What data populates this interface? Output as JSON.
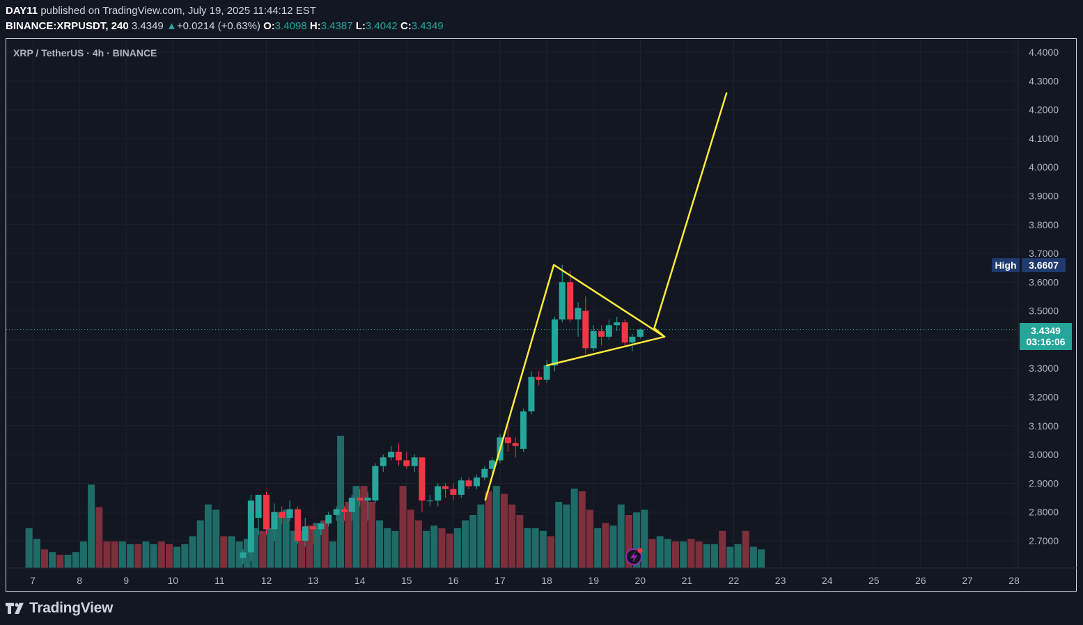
{
  "header": {
    "author": "DAY11",
    "published_text": "published on TradingView.com, July 19, 2025 11:44:12 EST",
    "symbol": "BINANCE:XRPUSDT, 240",
    "last": "3.4349",
    "change": "+0.0214 (+0.63%)",
    "open_label": "O:",
    "open": "3.4098",
    "high_label": "H:",
    "high": "3.4387",
    "low_label": "L:",
    "low": "3.4042",
    "close_label": "C:",
    "close": "3.4349"
  },
  "legend": "XRP / TetherUS · 4h · BINANCE",
  "high_marker": {
    "label": "High",
    "value": "3.6607"
  },
  "price_marker": {
    "value": "3.4349",
    "countdown": "03:16:06"
  },
  "brand": "TradingView",
  "colors": {
    "up": "#26a69a",
    "down": "#f23645",
    "up_vol": "#1f6b68",
    "down_vol": "#7d2f3b",
    "drawing": "#ffeb3b",
    "background": "#131722"
  },
  "chart_data": {
    "type": "candlestick",
    "title": "XRP / TetherUS · 4h · BINANCE",
    "y_ticks": [
      "4.4000",
      "4.3000",
      "4.2000",
      "4.1000",
      "4.0000",
      "3.9000",
      "3.8000",
      "3.7000",
      "3.6000",
      "3.5000",
      "3.4000",
      "3.3000",
      "3.2000",
      "3.1000",
      "3.0000",
      "2.9000",
      "2.8000",
      "2.7000"
    ],
    "ylim": [
      2.62,
      4.43
    ],
    "x_ticks": [
      {
        "label": "7",
        "day": 7
      },
      {
        "label": "8",
        "day": 8
      },
      {
        "label": "9",
        "day": 9
      },
      {
        "label": "10",
        "day": 10
      },
      {
        "label": "11",
        "day": 11
      },
      {
        "label": "12",
        "day": 12
      },
      {
        "label": "13",
        "day": 13
      },
      {
        "label": "14",
        "day": 14
      },
      {
        "label": "15",
        "day": 15
      },
      {
        "label": "16",
        "day": 16
      },
      {
        "label": "17",
        "day": 17
      },
      {
        "label": "18",
        "day": 18
      },
      {
        "label": "19",
        "day": 19
      },
      {
        "label": "20",
        "day": 20
      },
      {
        "label": "21",
        "day": 21
      },
      {
        "label": "22",
        "day": 22
      },
      {
        "label": "23",
        "day": 23
      },
      {
        "label": "24",
        "day": 24
      },
      {
        "label": "25",
        "day": 25
      },
      {
        "label": "26",
        "day": 26
      },
      {
        "label": "27",
        "day": 27
      },
      {
        "label": "28",
        "day": 28
      }
    ],
    "candles": [
      {
        "day": 11.5,
        "o": 2.64,
        "h": 2.67,
        "l": 2.62,
        "c": 2.66
      },
      {
        "day": 11.67,
        "o": 2.66,
        "h": 2.86,
        "l": 2.63,
        "c": 2.84
      },
      {
        "day": 11.83,
        "o": 2.78,
        "h": 2.86,
        "l": 2.72,
        "c": 2.86
      },
      {
        "day": 12.0,
        "o": 2.86,
        "h": 2.87,
        "l": 2.72,
        "c": 2.74
      },
      {
        "day": 12.17,
        "o": 2.74,
        "h": 2.83,
        "l": 2.7,
        "c": 2.8
      },
      {
        "day": 12.33,
        "o": 2.8,
        "h": 2.82,
        "l": 2.76,
        "c": 2.78
      },
      {
        "day": 12.5,
        "o": 2.78,
        "h": 2.84,
        "l": 2.77,
        "c": 2.81
      },
      {
        "day": 12.67,
        "o": 2.81,
        "h": 2.82,
        "l": 2.69,
        "c": 2.7
      },
      {
        "day": 12.83,
        "o": 2.7,
        "h": 2.78,
        "l": 2.68,
        "c": 2.75
      },
      {
        "day": 13.0,
        "o": 2.75,
        "h": 2.76,
        "l": 2.69,
        "c": 2.74
      },
      {
        "day": 13.17,
        "o": 2.74,
        "h": 2.77,
        "l": 2.72,
        "c": 2.76
      },
      {
        "day": 13.33,
        "o": 2.76,
        "h": 2.8,
        "l": 2.75,
        "c": 2.79
      },
      {
        "day": 13.5,
        "o": 2.79,
        "h": 2.82,
        "l": 2.77,
        "c": 2.81
      },
      {
        "day": 13.67,
        "o": 2.81,
        "h": 2.82,
        "l": 2.77,
        "c": 2.8
      },
      {
        "day": 13.83,
        "o": 2.8,
        "h": 2.86,
        "l": 2.77,
        "c": 2.85
      },
      {
        "day": 14.0,
        "o": 2.85,
        "h": 2.88,
        "l": 2.82,
        "c": 2.84
      },
      {
        "day": 14.17,
        "o": 2.84,
        "h": 2.87,
        "l": 2.77,
        "c": 2.85
      },
      {
        "day": 14.33,
        "o": 2.84,
        "h": 2.97,
        "l": 2.83,
        "c": 2.96
      },
      {
        "day": 14.5,
        "o": 2.96,
        "h": 3.0,
        "l": 2.94,
        "c": 2.99
      },
      {
        "day": 14.67,
        "o": 2.99,
        "h": 3.03,
        "l": 2.98,
        "c": 3.01
      },
      {
        "day": 14.83,
        "o": 3.01,
        "h": 3.04,
        "l": 2.96,
        "c": 2.98
      },
      {
        "day": 15.0,
        "o": 2.98,
        "h": 3.01,
        "l": 2.95,
        "c": 2.96
      },
      {
        "day": 15.17,
        "o": 2.96,
        "h": 3.0,
        "l": 2.94,
        "c": 2.99
      },
      {
        "day": 15.33,
        "o": 2.99,
        "h": 2.99,
        "l": 2.8,
        "c": 2.84
      },
      {
        "day": 15.5,
        "o": 2.84,
        "h": 2.86,
        "l": 2.82,
        "c": 2.84
      },
      {
        "day": 15.67,
        "o": 2.84,
        "h": 2.9,
        "l": 2.82,
        "c": 2.89
      },
      {
        "day": 15.83,
        "o": 2.89,
        "h": 2.9,
        "l": 2.85,
        "c": 2.88
      },
      {
        "day": 16.0,
        "o": 2.88,
        "h": 2.9,
        "l": 2.84,
        "c": 2.86
      },
      {
        "day": 16.17,
        "o": 2.86,
        "h": 2.92,
        "l": 2.85,
        "c": 2.91
      },
      {
        "day": 16.33,
        "o": 2.91,
        "h": 2.92,
        "l": 2.88,
        "c": 2.89
      },
      {
        "day": 16.5,
        "o": 2.89,
        "h": 2.93,
        "l": 2.88,
        "c": 2.92
      },
      {
        "day": 16.67,
        "o": 2.92,
        "h": 2.96,
        "l": 2.91,
        "c": 2.95
      },
      {
        "day": 16.83,
        "o": 2.95,
        "h": 2.99,
        "l": 2.93,
        "c": 2.98
      },
      {
        "day": 17.0,
        "o": 2.98,
        "h": 3.07,
        "l": 2.97,
        "c": 3.06
      },
      {
        "day": 17.17,
        "o": 3.06,
        "h": 3.1,
        "l": 3.01,
        "c": 3.04
      },
      {
        "day": 17.33,
        "o": 3.04,
        "h": 3.06,
        "l": 2.99,
        "c": 3.03
      },
      {
        "day": 17.5,
        "o": 3.02,
        "h": 3.16,
        "l": 3.01,
        "c": 3.15
      },
      {
        "day": 17.67,
        "o": 3.15,
        "h": 3.29,
        "l": 3.14,
        "c": 3.27
      },
      {
        "day": 17.83,
        "o": 3.27,
        "h": 3.29,
        "l": 3.24,
        "c": 3.26
      },
      {
        "day": 18.0,
        "o": 3.26,
        "h": 3.33,
        "l": 3.25,
        "c": 3.31
      },
      {
        "day": 18.17,
        "o": 3.31,
        "h": 3.48,
        "l": 3.29,
        "c": 3.47
      },
      {
        "day": 18.33,
        "o": 3.47,
        "h": 3.6607,
        "l": 3.46,
        "c": 3.6
      },
      {
        "day": 18.5,
        "o": 3.6,
        "h": 3.64,
        "l": 3.46,
        "c": 3.47
      },
      {
        "day": 18.67,
        "o": 3.47,
        "h": 3.53,
        "l": 3.41,
        "c": 3.51
      },
      {
        "day": 18.83,
        "o": 3.5,
        "h": 3.55,
        "l": 3.35,
        "c": 3.37
      },
      {
        "day": 19.0,
        "o": 3.37,
        "h": 3.45,
        "l": 3.36,
        "c": 3.43
      },
      {
        "day": 19.17,
        "o": 3.43,
        "h": 3.45,
        "l": 3.38,
        "c": 3.41
      },
      {
        "day": 19.33,
        "o": 3.41,
        "h": 3.47,
        "l": 3.4,
        "c": 3.45
      },
      {
        "day": 19.5,
        "o": 3.45,
        "h": 3.48,
        "l": 3.43,
        "c": 3.46
      },
      {
        "day": 19.67,
        "o": 3.46,
        "h": 3.47,
        "l": 3.38,
        "c": 3.39
      },
      {
        "day": 19.83,
        "o": 3.39,
        "h": 3.42,
        "l": 3.36,
        "c": 3.41
      },
      {
        "day": 20.0,
        "o": 3.4098,
        "h": 3.4387,
        "l": 3.4042,
        "c": 3.4349
      }
    ],
    "volume": {
      "start_day": 6.92,
      "step_day": 0.1667,
      "values": [
        0.3,
        0.22,
        0.14,
        0.12,
        0.1,
        0.1,
        0.12,
        0.2,
        0.63,
        0.46,
        0.2,
        0.2,
        0.2,
        0.18,
        0.18,
        0.2,
        0.18,
        0.2,
        0.18,
        0.16,
        0.18,
        0.24,
        0.36,
        0.48,
        0.44,
        0.24,
        0.24,
        0.2,
        0.22,
        0.3,
        0.28,
        0.3,
        0.42,
        0.44,
        0.28,
        0.28,
        0.32,
        0.34,
        0.36,
        0.2,
        1.0,
        0.5,
        0.62,
        0.62,
        0.5,
        0.36,
        0.3,
        0.28,
        0.62,
        0.44,
        0.36,
        0.28,
        0.32,
        0.3,
        0.26,
        0.3,
        0.36,
        0.4,
        0.48,
        0.58,
        0.62,
        0.56,
        0.48,
        0.4,
        0.3,
        0.3,
        0.28,
        0.24,
        0.5,
        0.48,
        0.6,
        0.58,
        0.44,
        0.3,
        0.34,
        0.32,
        0.48,
        0.4,
        0.42,
        0.44,
        0.22,
        0.24,
        0.22,
        0.2,
        0.2,
        0.22,
        0.2,
        0.18,
        0.18,
        0.28,
        0.16,
        0.18,
        0.28,
        0.16,
        0.14
      ],
      "up": [
        true,
        true,
        false,
        true,
        false,
        true,
        true,
        true,
        true,
        false,
        false,
        false,
        true,
        true,
        false,
        true,
        true,
        false,
        false,
        true,
        true,
        true,
        true,
        true,
        true,
        false,
        true,
        true,
        true,
        true,
        false,
        true,
        true,
        true,
        true,
        false,
        false,
        true,
        false,
        true,
        true,
        false,
        true,
        false,
        false,
        true,
        true,
        true,
        false,
        false,
        false,
        true,
        true,
        false,
        false,
        true,
        true,
        true,
        true,
        false,
        true,
        false,
        false,
        false,
        true,
        true,
        true,
        false,
        true,
        true,
        true,
        false,
        false,
        true,
        false,
        true,
        true,
        false,
        true,
        true,
        false,
        true,
        true,
        false,
        true,
        false,
        false,
        true,
        true,
        false,
        true,
        true,
        false,
        true,
        true
      ]
    },
    "drawing_polyline": [
      {
        "day": 16.68,
        "price": 2.84
      },
      {
        "day": 18.15,
        "price": 3.66
      },
      {
        "day": 20.52,
        "price": 3.41
      },
      {
        "day": 18.0,
        "price": 3.31
      },
      {
        "day": 20.52,
        "price": 3.41
      },
      {
        "day": 20.3,
        "price": 3.44
      },
      {
        "day": 21.85,
        "price": 4.26
      }
    ]
  }
}
